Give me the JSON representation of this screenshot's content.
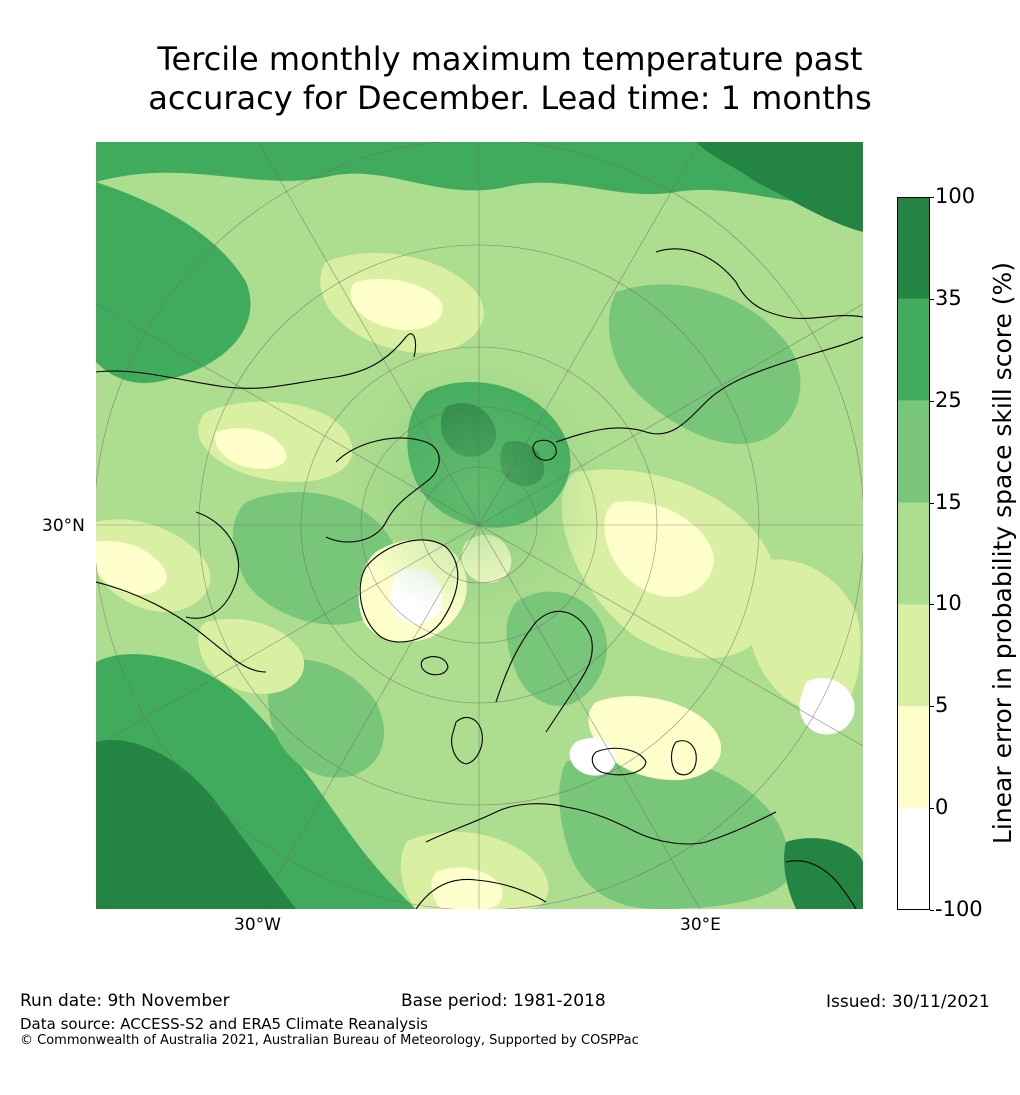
{
  "title": {
    "line1": "Tercile monthly maximum temperature past",
    "line2": "accuracy for December. Lead time: 1 months"
  },
  "map": {
    "projection": "north-polar-stereographic",
    "lat_label": "30°N",
    "lon_labels": [
      "30°W",
      "30°E"
    ],
    "land_outline_color": "#000000",
    "description_colors": {
      "c_neg": "#ffffff",
      "c_0_5": "#ffffcc",
      "c_5_10": "#d9f0a3",
      "c_10_15": "#addd8e",
      "c_15_25": "#78c679",
      "c_25_35": "#41ab5d",
      "c_35_100": "#238443"
    }
  },
  "colorbar": {
    "label": "Linear error in probability space skill score (%)",
    "ticks": [
      "100",
      "35",
      "25",
      "15",
      "10",
      "5",
      "0",
      "-100"
    ],
    "bins": [
      {
        "from": -100,
        "to": 0,
        "color": "#ffffff"
      },
      {
        "from": 0,
        "to": 5,
        "color": "#ffffcc"
      },
      {
        "from": 5,
        "to": 10,
        "color": "#d9f0a3"
      },
      {
        "from": 10,
        "to": 15,
        "color": "#addd8e"
      },
      {
        "from": 15,
        "to": 25,
        "color": "#78c679"
      },
      {
        "from": 25,
        "to": 35,
        "color": "#41ab5d"
      },
      {
        "from": 35,
        "to": 100,
        "color": "#238443"
      }
    ]
  },
  "footer": {
    "run_date": "Run date: 9th November",
    "base_period": "Base period: 1981-2018",
    "issued": "Issued: 30/11/2021",
    "data_source": "Data source: ACCESS-S2 and ERA5 Climate Reanalysis",
    "copyright": "© Commonwealth of Australia 2021, Australian Bureau of Meteorology, Supported by COSPPac"
  }
}
